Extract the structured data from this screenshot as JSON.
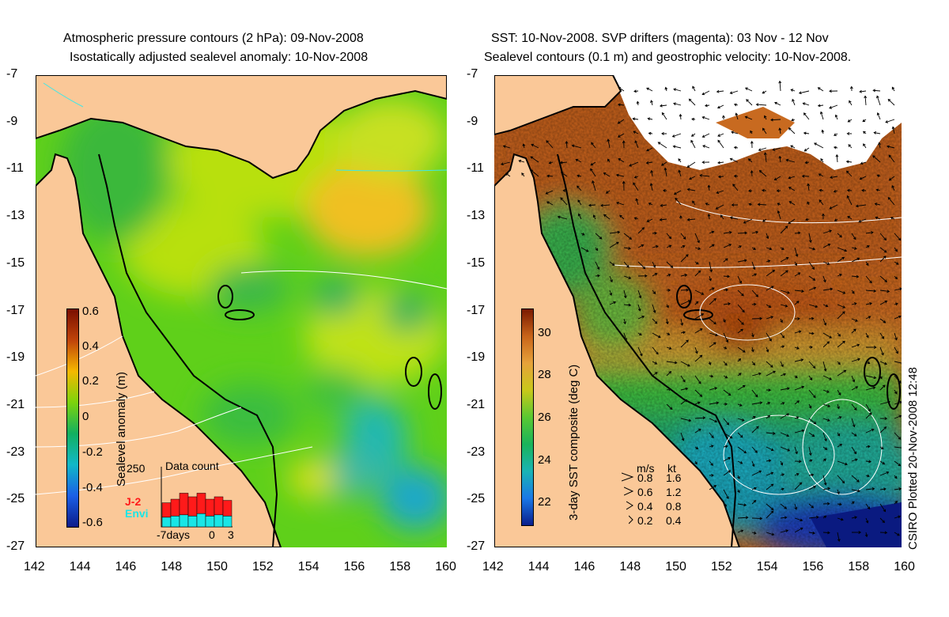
{
  "left_panel": {
    "title_line1": "Atmospheric pressure contours (2 hPa): 09-Nov-2008",
    "title_line2": "Isostatically adjusted sealevel anomaly: 10-Nov-2008",
    "colorbar": {
      "label": "Sealevel anomaly (m)",
      "ticks": [
        "0.6",
        "0.4",
        "0.2",
        "0",
        "-0.2",
        "-0.4",
        "-0.6"
      ],
      "colors": [
        "#7a0e00",
        "#c0440a",
        "#f5b800",
        "#7cd30c",
        "#12b060",
        "#11b8c8",
        "#1a5fe6",
        "#0c1c8a"
      ]
    },
    "data_count": {
      "title": "Data count",
      "ymax_label": "250",
      "series": [
        {
          "name": "J-2",
          "color": "#ff1a1a"
        },
        {
          "name": "Envi",
          "color": "#19e6e6"
        }
      ],
      "j2_values": [
        60,
        70,
        90,
        80,
        85,
        70,
        75,
        65
      ],
      "envi_values": [
        40,
        45,
        50,
        45,
        55,
        45,
        50,
        45
      ],
      "x_left_label": "-7days",
      "x_mid_label": "0",
      "x_right_label": "3"
    }
  },
  "right_panel": {
    "title_line1": "SST: 10-Nov-2008. SVP drifters (magenta): 03 Nov - 12 Nov",
    "title_line2": "Sealevel contours (0.1 m) and geostrophic velocity: 10-Nov-2008.",
    "colorbar": {
      "label": "3-day SST composite (deg C)",
      "ticks": [
        "30",
        "28",
        "26",
        "24",
        "22"
      ],
      "colors": [
        "#7a1a00",
        "#c8641a",
        "#e6a23a",
        "#c8c81a",
        "#5ac832",
        "#1ab45a",
        "#1ab4b4",
        "#1a78e6",
        "#0a1e8c"
      ]
    },
    "velocity_legend": {
      "header_ms": "m/s",
      "header_kt": "kt",
      "rows": [
        {
          "ms": "0.8",
          "kt": "1.6"
        },
        {
          "ms": "0.6",
          "kt": "1.2"
        },
        {
          "ms": "0.4",
          "kt": "0.8"
        },
        {
          "ms": "0.2",
          "kt": "0.4"
        }
      ]
    }
  },
  "axes": {
    "lat_labels": [
      "-7",
      "-9",
      "-11",
      "-13",
      "-15",
      "-17",
      "-19",
      "-21",
      "-23",
      "-25",
      "-27"
    ],
    "lon_labels": [
      "142",
      "144",
      "146",
      "148",
      "150",
      "152",
      "154",
      "156",
      "158",
      "160"
    ]
  },
  "credit": "CSIRO Plotted 20-Nov-2008 12:48",
  "colors": {
    "land": "#fac898",
    "coast": "#000000",
    "cloud": "#ffffff"
  }
}
